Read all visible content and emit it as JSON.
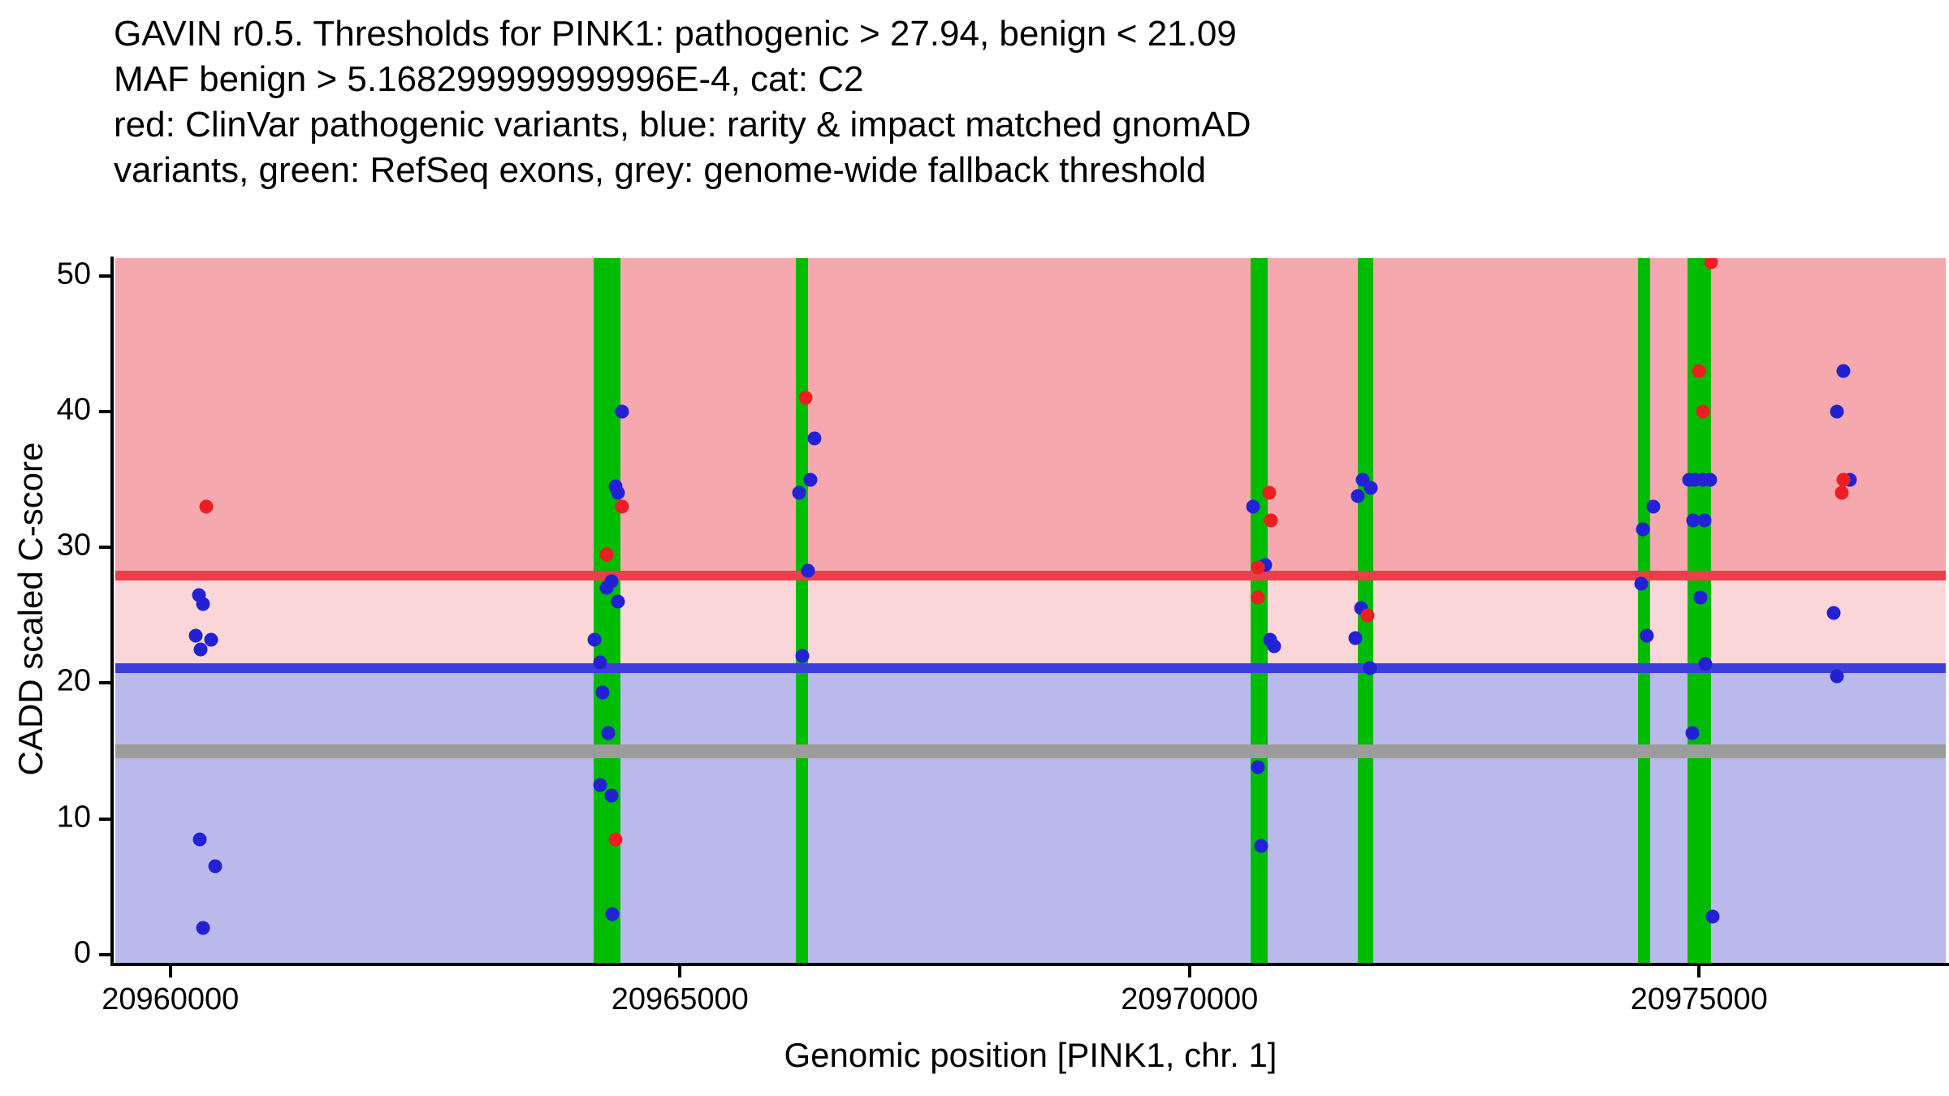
{
  "title": {
    "lines": [
      "GAVIN r0.5. Thresholds for PINK1: pathogenic > 27.94, benign < 21.09",
      "MAF benign > 5.168299999999996E-4, cat: C2",
      "red: ClinVar pathogenic variants, blue: rarity & impact matched gnomAD",
      "variants, green: RefSeq exons, grey: genome-wide fallback threshold"
    ]
  },
  "chart_data": {
    "type": "scatter",
    "title": "GAVIN r0.5. Thresholds for PINK1: pathogenic > 27.94, benign < 21.09 MAF benign > 5.168299999999996E-4, cat: C2",
    "xlabel": "Genomic position [PINK1, chr. 1]",
    "ylabel": "CADD scaled C-score",
    "x_domain": [
      20959460,
      20977420
    ],
    "y_domain": [
      -0.6,
      51.3
    ],
    "x_ticks": [
      20960000,
      20965000,
      20970000,
      20975000
    ],
    "y_ticks": [
      0,
      10,
      20,
      30,
      40,
      50
    ],
    "thresholds": {
      "pathogenic": 27.94,
      "benign": 21.09,
      "genome_wide_fallback": 15
    },
    "exons_name": "RefSeq exons",
    "exons": [
      [
        20964150,
        20964420
      ],
      [
        20966140,
        20966260
      ],
      [
        20970600,
        20970770
      ],
      [
        20971650,
        20971800
      ],
      [
        20974400,
        20974520
      ],
      [
        20974890,
        20975115
      ]
    ],
    "series": [
      {
        "name": "rarity & impact matched gnomAD variants",
        "color": "#2222d4",
        "points": [
          [
            20960280,
            26.5
          ],
          [
            20960320,
            25.8
          ],
          [
            20960250,
            23.5
          ],
          [
            20960400,
            23.2
          ],
          [
            20960300,
            22.5
          ],
          [
            20960290,
            8.5
          ],
          [
            20960440,
            6.5
          ],
          [
            20960320,
            2
          ],
          [
            20964430,
            40
          ],
          [
            20964370,
            34.5
          ],
          [
            20964390,
            34
          ],
          [
            20964330,
            27.5
          ],
          [
            20964280,
            27
          ],
          [
            20964390,
            26
          ],
          [
            20964160,
            23.2
          ],
          [
            20964220,
            21.5
          ],
          [
            20964240,
            19.3
          ],
          [
            20964300,
            16.3
          ],
          [
            20964220,
            12.5
          ],
          [
            20964330,
            11.7
          ],
          [
            20964340,
            3
          ],
          [
            20966320,
            38
          ],
          [
            20966280,
            35
          ],
          [
            20966170,
            34
          ],
          [
            20966260,
            28.3
          ],
          [
            20966200,
            22
          ],
          [
            20970620,
            33
          ],
          [
            20970740,
            28.7
          ],
          [
            20970790,
            23.2
          ],
          [
            20970830,
            22.7
          ],
          [
            20970670,
            13.8
          ],
          [
            20970700,
            8
          ],
          [
            20971700,
            35
          ],
          [
            20971780,
            34.4
          ],
          [
            20971650,
            33.8
          ],
          [
            20971680,
            25.5
          ],
          [
            20971630,
            23.3
          ],
          [
            20971770,
            21.1
          ],
          [
            20974550,
            33
          ],
          [
            20974450,
            31.3
          ],
          [
            20974430,
            27.3
          ],
          [
            20974490,
            23.5
          ],
          [
            20974900,
            35
          ],
          [
            20974960,
            35
          ],
          [
            20975040,
            35
          ],
          [
            20975110,
            35
          ],
          [
            20974940,
            32
          ],
          [
            20975050,
            32
          ],
          [
            20975010,
            26.3
          ],
          [
            20975060,
            21.4
          ],
          [
            20974930,
            16.3
          ],
          [
            20975130,
            2.8
          ],
          [
            20976415,
            43
          ],
          [
            20976355,
            40
          ],
          [
            20976480,
            35
          ],
          [
            20976320,
            25.2
          ],
          [
            20976355,
            20.5
          ]
        ]
      },
      {
        "name": "ClinVar pathogenic variants",
        "color": "#ec1e24",
        "points": [
          [
            20960350,
            33
          ],
          [
            20964280,
            29.5
          ],
          [
            20964430,
            33
          ],
          [
            20964370,
            8.5
          ],
          [
            20966230,
            41
          ],
          [
            20970780,
            34
          ],
          [
            20970800,
            32
          ],
          [
            20970670,
            28.5
          ],
          [
            20970670,
            26.3
          ],
          [
            20971750,
            25
          ],
          [
            20975120,
            51
          ],
          [
            20975000,
            43
          ],
          [
            20975040,
            40
          ],
          [
            20976420,
            35
          ],
          [
            20976400,
            34
          ]
        ]
      }
    ],
    "colors": {
      "band_pathogenic": "#f5a8ad",
      "band_intermediate": "#fbd6d9",
      "band_benign": "#b9baeb",
      "exon_green": "#00bc00",
      "line_pathogenic": "#ec3e4b",
      "line_benign": "#3e3edd",
      "line_fallback": "#9c9c9c",
      "point_red": "#ec1e24",
      "point_blue": "#2222d4",
      "axis": "#000000"
    },
    "legend": "none (encoded in title text)",
    "grid": false
  }
}
